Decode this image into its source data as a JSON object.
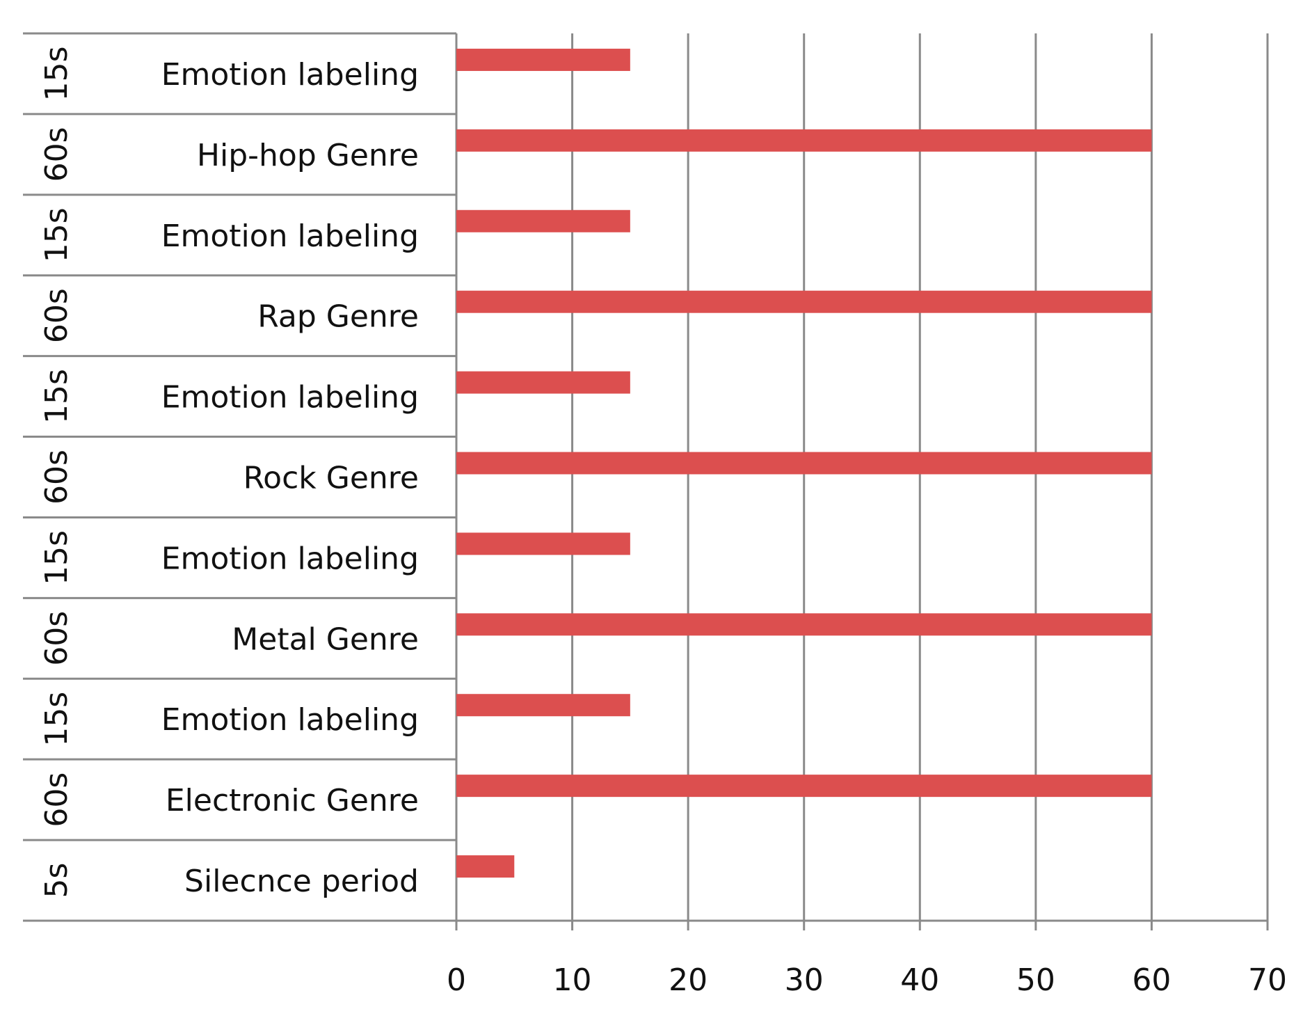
{
  "chart_data": {
    "type": "bar",
    "orientation": "horizontal",
    "categories": [
      "Emotion labeling",
      "Hip-hop Genre",
      "Emotion labeling",
      "Rap Genre",
      "Emotion labeling",
      "Rock Genre",
      "Emotion labeling",
      "Metal Genre",
      "Emotion labeling",
      "Electronic Genre",
      "Silecnce period"
    ],
    "category_groups": [
      "15s",
      "60s",
      "15s",
      "60s",
      "15s",
      "60s",
      "15s",
      "60s",
      "15s",
      "60s",
      "5s"
    ],
    "values": [
      15,
      60,
      15,
      60,
      15,
      60,
      15,
      60,
      15,
      60,
      5
    ],
    "color": "#dc4f4f",
    "xlim": [
      0,
      70
    ],
    "xticks": [
      0,
      10,
      20,
      30,
      40,
      50,
      60,
      70
    ],
    "grid": true
  }
}
